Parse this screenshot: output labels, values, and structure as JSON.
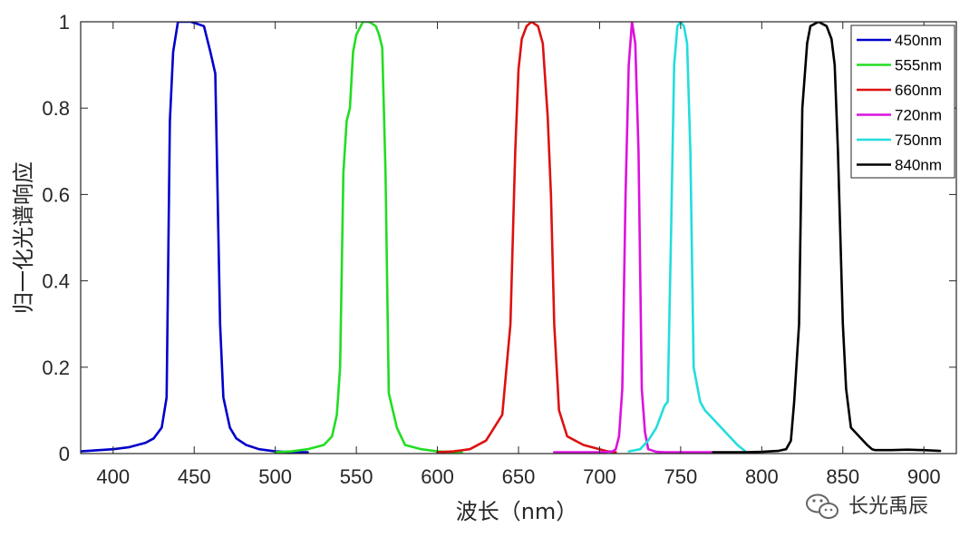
{
  "chart_data": {
    "type": "line",
    "title": "",
    "xlabel": "波长（nm）",
    "ylabel": "归一化光谱响应",
    "xlim": [
      380,
      920
    ],
    "ylim": [
      0,
      1
    ],
    "xticks": [
      400,
      450,
      500,
      550,
      600,
      650,
      700,
      750,
      800,
      850,
      900
    ],
    "yticks": [
      0,
      0.2,
      0.4,
      0.6,
      0.8,
      1
    ],
    "ytick_labels": [
      "0",
      "0.2",
      "0.4",
      "0.6",
      "0.8",
      "1"
    ],
    "grid": false,
    "legend_position": "top-right",
    "series": [
      {
        "name": "450nm",
        "color": "#0000cc",
        "x": [
          380,
          400,
          410,
          420,
          425,
          430,
          433,
          435,
          437,
          440,
          442,
          448,
          452,
          456,
          460,
          463,
          466,
          468,
          472,
          476,
          482,
          490,
          500,
          510,
          520
        ],
        "y": [
          0.005,
          0.01,
          0.015,
          0.025,
          0.035,
          0.06,
          0.13,
          0.77,
          0.93,
          1.0,
          1.0,
          1.0,
          0.995,
          0.99,
          0.93,
          0.88,
          0.3,
          0.13,
          0.06,
          0.035,
          0.02,
          0.01,
          0.005,
          0.003,
          0.003
        ]
      },
      {
        "name": "555nm",
        "color": "#22dd22",
        "x": [
          500,
          510,
          520,
          530,
          535,
          538,
          540,
          542,
          544,
          546,
          548,
          550,
          554,
          558,
          562,
          564,
          566,
          568,
          570,
          575,
          580,
          590,
          600,
          610,
          615
        ],
        "y": [
          0.003,
          0.005,
          0.01,
          0.02,
          0.04,
          0.09,
          0.2,
          0.65,
          0.77,
          0.8,
          0.93,
          0.97,
          1.0,
          1.0,
          0.99,
          0.97,
          0.94,
          0.65,
          0.14,
          0.06,
          0.02,
          0.01,
          0.005,
          0.003,
          0.003
        ]
      },
      {
        "name": "660nm",
        "color": "#dd1111",
        "x": [
          600,
          610,
          620,
          630,
          640,
          645,
          648,
          650,
          652,
          655,
          658,
          662,
          665,
          668,
          670,
          672,
          675,
          680,
          690,
          700,
          705,
          710
        ],
        "y": [
          0.003,
          0.005,
          0.01,
          0.03,
          0.09,
          0.3,
          0.7,
          0.89,
          0.96,
          0.99,
          1.0,
          0.99,
          0.95,
          0.78,
          0.6,
          0.3,
          0.1,
          0.04,
          0.02,
          0.01,
          0.005,
          0.003
        ]
      },
      {
        "name": "720nm",
        "color": "#dd11dd",
        "x": [
          672,
          690,
          700,
          705,
          708,
          710,
          712,
          714,
          716,
          718,
          720,
          722,
          724,
          726,
          728,
          730,
          735,
          740,
          750,
          760,
          770
        ],
        "y": [
          0.003,
          0.003,
          0.003,
          0.004,
          0.005,
          0.01,
          0.04,
          0.15,
          0.6,
          0.9,
          1.0,
          0.95,
          0.7,
          0.15,
          0.05,
          0.01,
          0.004,
          0.003,
          0.003,
          0.003,
          0.003
        ]
      },
      {
        "name": "750nm",
        "color": "#22dddd",
        "x": [
          718,
          725,
          730,
          735,
          740,
          742,
          744,
          746,
          748,
          750,
          752,
          754,
          756,
          758,
          762,
          765,
          770,
          775,
          780,
          785,
          790
        ],
        "y": [
          0.005,
          0.01,
          0.03,
          0.06,
          0.11,
          0.12,
          0.5,
          0.9,
          0.99,
          1.0,
          0.99,
          0.95,
          0.7,
          0.2,
          0.12,
          0.1,
          0.08,
          0.06,
          0.04,
          0.02,
          0.005
        ]
      },
      {
        "name": "840nm",
        "color": "#000000",
        "x": [
          770,
          790,
          800,
          810,
          815,
          818,
          820,
          823,
          825,
          828,
          830,
          835,
          840,
          843,
          845,
          847,
          850,
          852,
          855,
          860,
          865,
          868,
          870,
          880,
          890,
          900,
          910
        ],
        "y": [
          0.003,
          0.003,
          0.004,
          0.006,
          0.01,
          0.03,
          0.12,
          0.3,
          0.8,
          0.95,
          0.99,
          1.0,
          0.99,
          0.96,
          0.9,
          0.7,
          0.3,
          0.15,
          0.06,
          0.04,
          0.02,
          0.01,
          0.008,
          0.008,
          0.009,
          0.008,
          0.006
        ]
      }
    ]
  },
  "watermark": {
    "text": "长光禹辰",
    "icon": "wechat-icon"
  }
}
